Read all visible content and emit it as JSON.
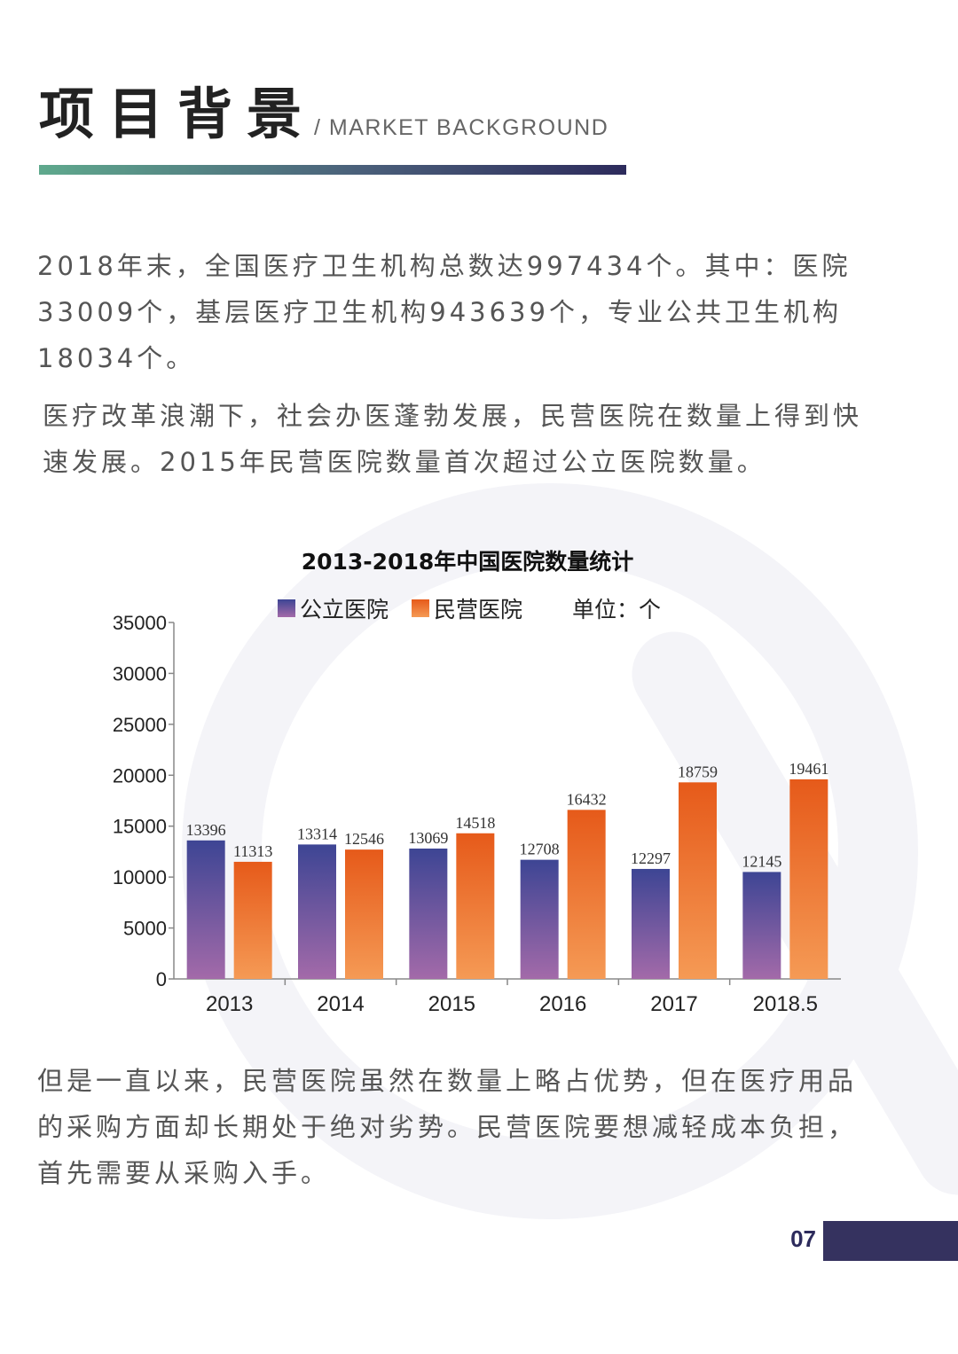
{
  "header": {
    "title_cn": "项目背景",
    "title_en": "/ MARKET BACKGROUND"
  },
  "paragraph1": [
    "2018年末，全国医疗卫生机构总数达997434个。其中：医院",
    "33009个，基层医疗卫生机构943639个，专业公共卫生机构",
    "18034个。"
  ],
  "paragraph2": [
    "医疗改革浪潮下，社会办医蓬勃发展，民营医院在数量上得到快",
    "速发展。2015年民营医院数量首次超过公立医院数量。"
  ],
  "paragraph3": [
    "但是一直以来，民营医院虽然在数量上略占优势，但在医疗用品",
    "的采购方面却长期处于绝对劣势。民营医院要想减轻成本负担，",
    "首先需要从采购入手。"
  ],
  "chart_data": {
    "type": "bar",
    "title": "2013-2018年中国医院数量统计",
    "unit_label": "单位：个",
    "categories": [
      "2013",
      "2014",
      "2015",
      "2016",
      "2017",
      "2018.5"
    ],
    "series": [
      {
        "name": "公立医院",
        "values": [
          13396,
          13314,
          13069,
          12708,
          12297,
          12145
        ],
        "display_heights": [
          13600,
          13200,
          12800,
          11700,
          10800,
          10500
        ],
        "color_top": "#3d4594",
        "color_bottom": "#a36aa9"
      },
      {
        "name": "民营医院",
        "values": [
          11313,
          12546,
          14518,
          16432,
          18759,
          19461
        ],
        "display_heights": [
          11500,
          12700,
          14300,
          16600,
          19300,
          19600
        ],
        "color_top": "#e65a1a",
        "color_bottom": "#f59a55"
      }
    ],
    "ylim": [
      0,
      35000
    ],
    "yticks": [
      0,
      5000,
      10000,
      15000,
      20000,
      25000,
      30000,
      35000
    ],
    "xlabel": "",
    "ylabel": "",
    "grid": false,
    "legend_position": "top"
  },
  "page": {
    "number": "07",
    "accent": "#35325f"
  }
}
